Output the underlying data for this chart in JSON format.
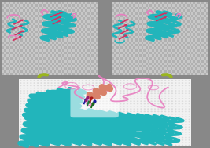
{
  "fig_w": 2.67,
  "fig_h": 1.89,
  "dpi": 100,
  "top_bg_color1": "#b0b0b0",
  "top_bg_color2": "#c8c8c8",
  "bottom_bg_color1": "#dcdcdc",
  "bottom_bg_color2": "#f2f2f2",
  "outer_bg": "#888888",
  "arrow_color": "#9ab520",
  "protein_cyan": "#22b5bb",
  "protein_red": "#d43060",
  "protein_pink": "#e87ec0",
  "protein_magenta": "#cc44aa",
  "protein_salmon": "#d8826a",
  "protein_teal": "#1a9090",
  "white": "#ffffff"
}
